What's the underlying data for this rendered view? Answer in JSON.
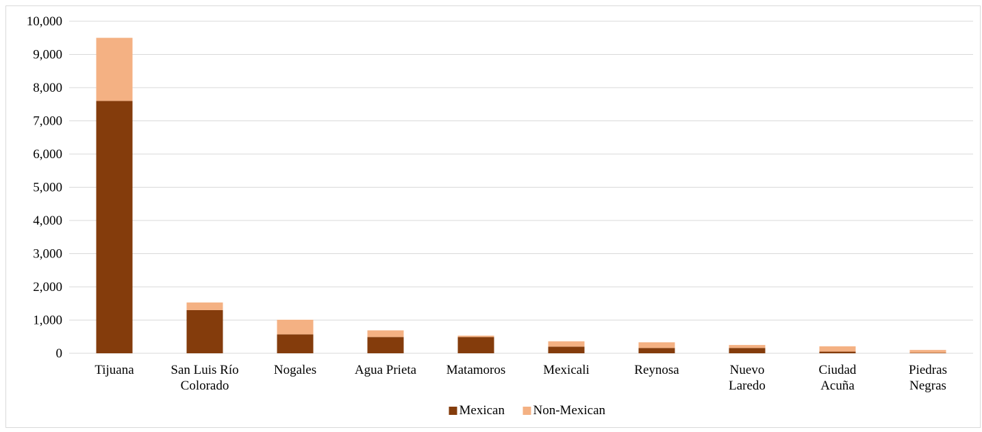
{
  "chart_data": {
    "type": "bar",
    "stacked": true,
    "categories": [
      [
        "Tijuana"
      ],
      [
        "San Luis Río",
        "Colorado"
      ],
      [
        "Nogales"
      ],
      [
        "Agua Prieta"
      ],
      [
        "Matamoros"
      ],
      [
        "Mexicali"
      ],
      [
        "Reynosa"
      ],
      [
        "Nuevo",
        "Laredo"
      ],
      [
        "Ciudad",
        "Acuña"
      ],
      [
        "Piedras",
        "Negras"
      ]
    ],
    "series": [
      {
        "name": "Mexican",
        "color": "#843c0c",
        "values": [
          7600,
          1300,
          570,
          490,
          490,
          200,
          160,
          160,
          50,
          10
        ]
      },
      {
        "name": "Non-Mexican",
        "color": "#f4b183",
        "values": [
          1900,
          230,
          440,
          200,
          40,
          160,
          170,
          90,
          160,
          90
        ]
      }
    ],
    "ylim": [
      0,
      10000
    ],
    "yticks": [
      0,
      1000,
      2000,
      3000,
      4000,
      5000,
      6000,
      7000,
      8000,
      9000,
      10000
    ],
    "ytick_labels": [
      "0",
      "1,000",
      "2,000",
      "3,000",
      "4,000",
      "5,000",
      "6,000",
      "7,000",
      "8,000",
      "9,000",
      "10,000"
    ],
    "grid": true,
    "legend": {
      "position": "bottom",
      "entries": [
        "Mexican",
        "Non-Mexican"
      ]
    },
    "gridline_color": "#d9d9d9"
  }
}
